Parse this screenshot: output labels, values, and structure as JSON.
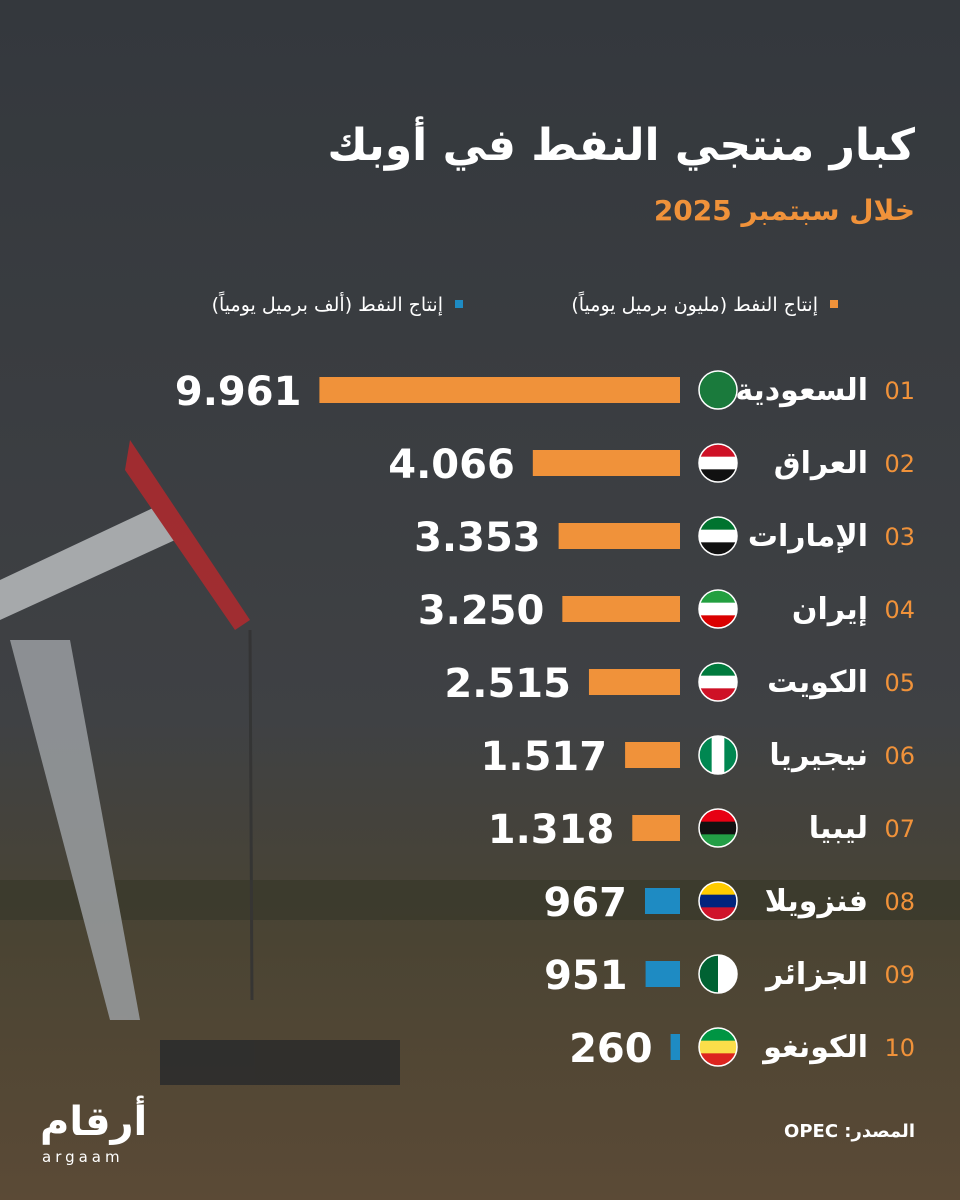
{
  "chart_data": {
    "type": "bar",
    "title": "كبار منتجي النفط في أوبك",
    "subtitle": "خلال سبتمبر 2025",
    "ranks": [
      "01",
      "02",
      "03",
      "04",
      "05",
      "06",
      "07",
      "08",
      "09",
      "10"
    ],
    "categories": [
      "السعودية",
      "العراق",
      "الإمارات",
      "إيران",
      "الكويت",
      "نيجيريا",
      "ليبيا",
      "فنزويلا",
      "الجزائر",
      "الكونغو"
    ],
    "series": [
      {
        "name": "إنتاج النفط (مليون برميل يومياً)",
        "color": "#f0923a",
        "values": [
          9.961,
          4.066,
          3.353,
          3.25,
          2.515,
          1.517,
          1.318,
          null,
          null,
          null
        ],
        "value_labels": [
          "9.961",
          "4.066",
          "3.353",
          "3.250",
          "2.515",
          "1.517",
          "1.318",
          null,
          null,
          null
        ]
      },
      {
        "name": "إنتاج النفط (ألف برميل يومياً)",
        "color": "#1e8bc3",
        "values": [
          null,
          null,
          null,
          null,
          null,
          null,
          null,
          967,
          951,
          260
        ]
      }
    ],
    "source": "المصدر: OPEC",
    "logo": "أرقام",
    "logo_latin": "argaam"
  }
}
